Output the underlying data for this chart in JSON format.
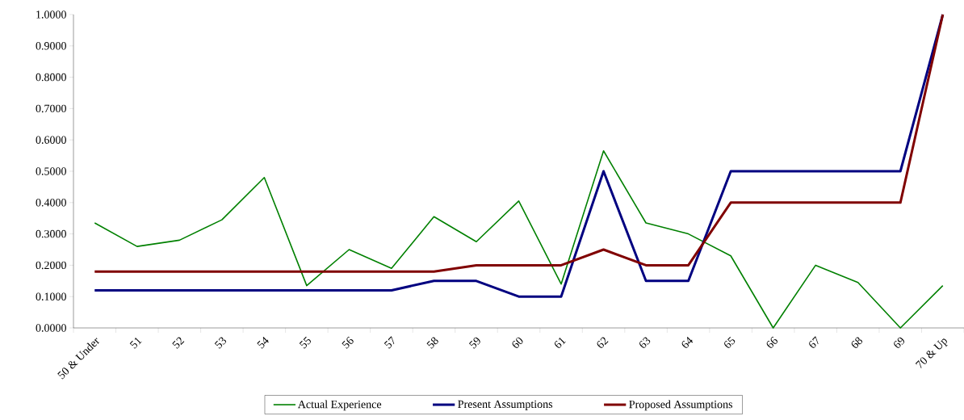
{
  "chart_data": {
    "type": "line",
    "categories": [
      "50 & Under",
      "51",
      "52",
      "53",
      "54",
      "55",
      "56",
      "57",
      "58",
      "59",
      "60",
      "61",
      "62",
      "63",
      "64",
      "65",
      "66",
      "67",
      "68",
      "69",
      "70 & Up"
    ],
    "series": [
      {
        "name": "Actual Experience",
        "color": "#008000",
        "values": [
          0.335,
          0.26,
          0.28,
          0.345,
          0.48,
          0.135,
          0.25,
          0.19,
          0.355,
          0.275,
          0.405,
          0.14,
          0.565,
          0.335,
          0.3,
          0.23,
          0.0,
          0.2,
          0.145,
          0.0,
          0.135
        ]
      },
      {
        "name": "Present Assumptions",
        "color": "#000080",
        "values": [
          0.12,
          0.12,
          0.12,
          0.12,
          0.12,
          0.12,
          0.12,
          0.12,
          0.15,
          0.15,
          0.1,
          0.1,
          0.5,
          0.15,
          0.15,
          0.5,
          0.5,
          0.5,
          0.5,
          0.5,
          1.0
        ]
      },
      {
        "name": "Proposed Assumptions",
        "color": "#800000",
        "values": [
          0.18,
          0.18,
          0.18,
          0.18,
          0.18,
          0.18,
          0.18,
          0.18,
          0.18,
          0.2,
          0.2,
          0.2,
          0.25,
          0.2,
          0.2,
          0.4,
          0.4,
          0.4,
          0.4,
          0.4,
          1.0
        ]
      }
    ],
    "ylim": [
      0,
      1
    ],
    "yticks": [
      {
        "value": 0,
        "label": "0.0000"
      },
      {
        "value": 0.1,
        "label": "0.1000"
      },
      {
        "value": 0.2,
        "label": "0.2000"
      },
      {
        "value": 0.3,
        "label": "0.3000"
      },
      {
        "value": 0.4,
        "label": "0.4000"
      },
      {
        "value": 0.5,
        "label": "0.5000"
      },
      {
        "value": 0.6,
        "label": "0.6000"
      },
      {
        "value": 0.7,
        "label": "0.7000"
      },
      {
        "value": 0.8,
        "label": "0.8000"
      },
      {
        "value": 0.9,
        "label": "0.9000"
      },
      {
        "value": 1,
        "label": "1.0000"
      }
    ],
    "legend": "bottom"
  }
}
